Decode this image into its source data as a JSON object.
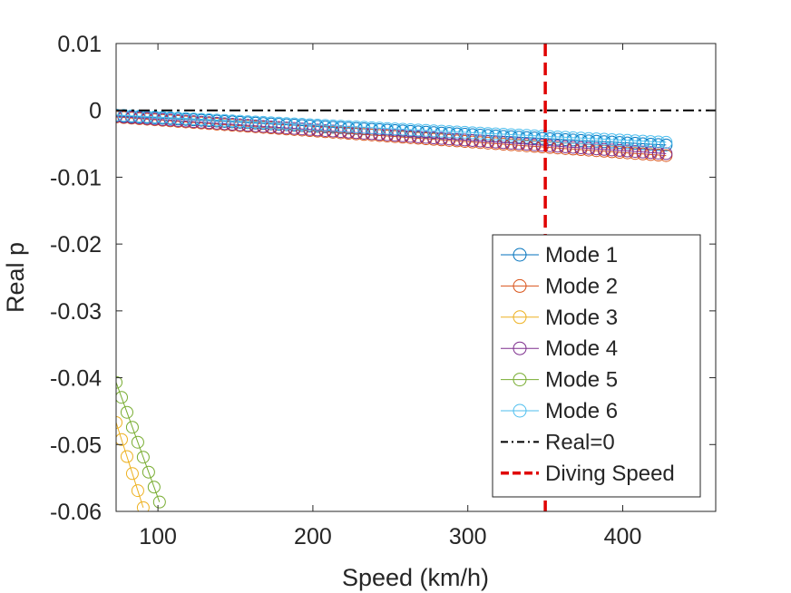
{
  "chart_data": {
    "type": "scatter",
    "xlabel": "Speed (km/h)",
    "ylabel": "Real p",
    "xlim": [
      73,
      460
    ],
    "ylim": [
      -0.06,
      0.01
    ],
    "xticks": [
      100,
      200,
      300,
      400
    ],
    "yticks": [
      0.01,
      0,
      -0.01,
      -0.02,
      -0.03,
      -0.04,
      -0.05,
      -0.06
    ],
    "ytick_labels": [
      "0.01",
      "0",
      "-0.01",
      "-0.02",
      "-0.03",
      "-0.04",
      "-0.05",
      "-0.06"
    ],
    "grid": false,
    "legend_position": "bottom-right",
    "series": [
      {
        "name": "Mode 1",
        "color": "#0072BD",
        "marker": "circle",
        "x_start": 73,
        "x_end": 430,
        "x_step": 5,
        "y_start": -0.0008,
        "y_end": -0.0052
      },
      {
        "name": "Mode 2",
        "color": "#D95319",
        "marker": "circle",
        "x_start": 73,
        "x_end": 430,
        "x_step": 5,
        "y_start": -0.001,
        "y_end": -0.0068
      },
      {
        "name": "Mode 3",
        "color": "#EDB120",
        "marker": "circle",
        "x_start": 73,
        "x_end": 91,
        "x_step": 3.5,
        "y_start": -0.0467,
        "y_end": -0.0598
      },
      {
        "name": "Mode 4",
        "color": "#7E2F8E",
        "marker": "circle",
        "x_start": 73,
        "x_end": 430,
        "x_step": 5,
        "y_start": -0.0009,
        "y_end": -0.0065
      },
      {
        "name": "Mode 5",
        "color": "#77AC30",
        "marker": "circle",
        "x_start": 73,
        "x_end": 101,
        "x_step": 3.5,
        "y_start": -0.0407,
        "y_end": -0.0586
      },
      {
        "name": "Mode 6",
        "color": "#4DBEEE",
        "marker": "circle",
        "x_start": 73,
        "x_end": 430,
        "x_step": 5,
        "y_start": -0.0007,
        "y_end": -0.0048
      }
    ],
    "reference_lines": [
      {
        "name": "Real=0",
        "orientation": "horizontal",
        "value": 0,
        "color": "#000000",
        "style": "dash-dot"
      },
      {
        "name": "Diving Speed",
        "orientation": "vertical",
        "value": 350,
        "color": "#E00000",
        "style": "dashed"
      }
    ]
  }
}
